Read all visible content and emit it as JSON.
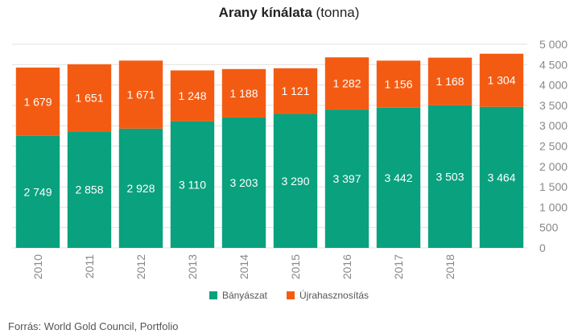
{
  "header": {
    "title_bold": "Arany kínálata",
    "title_rest": " (tonna)"
  },
  "footer": {
    "source": "Forrás: World Gold Council, Portfolio"
  },
  "colors": {
    "mining": "#0aa17e",
    "recycling": "#f45b12",
    "grid": "#e0e0e0",
    "axis_text": "#888888"
  },
  "chart_data": {
    "type": "bar",
    "stacked": true,
    "title": "Arany kínálata (tonna)",
    "categories": [
      "2010",
      "2011",
      "2012",
      "2013",
      "2014",
      "2015",
      "2016",
      "2017",
      "2018",
      ""
    ],
    "series": [
      {
        "name": "Bányászat",
        "values": [
          2749,
          2858,
          2928,
          3110,
          3203,
          3290,
          3397,
          3442,
          3503,
          3464
        ],
        "labels": [
          "2 749",
          "2 858",
          "2 928",
          "3 110",
          "3 203",
          "3 290",
          "3 397",
          "3 442",
          "3 503",
          "3 464"
        ]
      },
      {
        "name": "Újrahasznosítás",
        "values": [
          1679,
          1651,
          1671,
          1248,
          1188,
          1121,
          1282,
          1156,
          1168,
          1304
        ],
        "labels": [
          "1 679",
          "1 651",
          "1 671",
          "1 248",
          "1 188",
          "1 121",
          "1 282",
          "1 156",
          "1 168",
          "1 304"
        ]
      }
    ],
    "ylim": [
      0,
      5000
    ],
    "yticks": [
      0,
      500,
      1000,
      1500,
      2000,
      2500,
      3000,
      3500,
      4000,
      4500,
      5000
    ],
    "ytick_labels": [
      "0",
      "500",
      "1 000",
      "1 500",
      "2 000",
      "2 500",
      "3 000",
      "3 500",
      "4 000",
      "4 500",
      "5 000"
    ],
    "y_axis_position": "right",
    "grid": true,
    "legend_position": "bottom"
  }
}
